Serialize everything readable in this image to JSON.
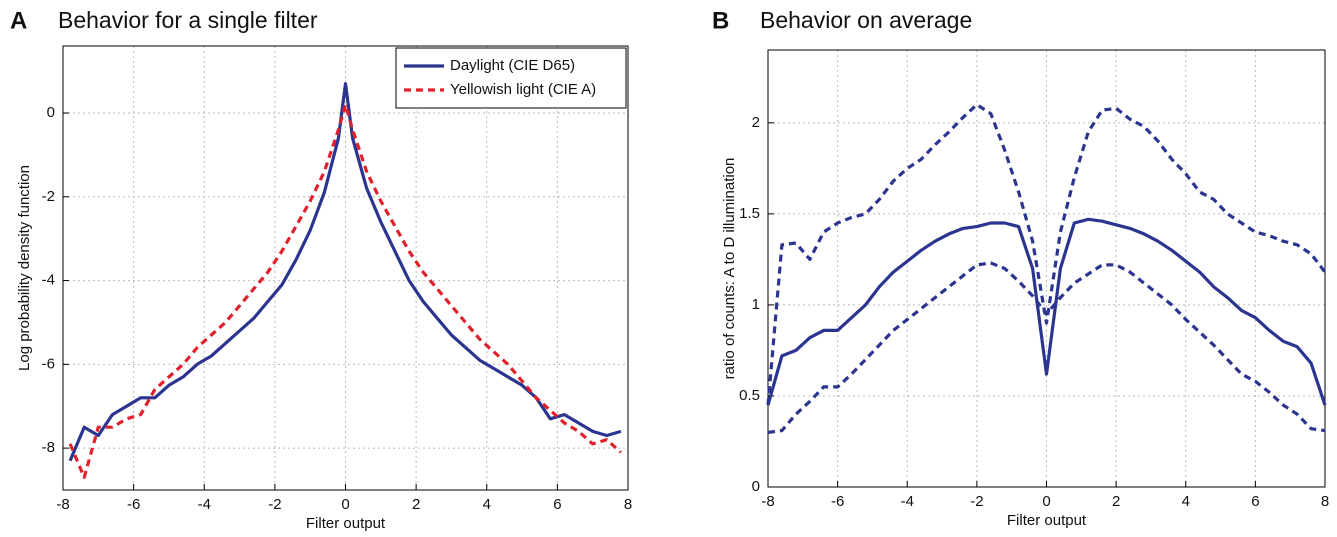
{
  "chart_data": [
    {
      "type": "line",
      "panel_label": "A",
      "title": "Behavior for a single filter",
      "x_label": "Filter output",
      "y_label": "Log probability density function",
      "xlim": [
        -8,
        8
      ],
      "ylim": [
        -9,
        1.6
      ],
      "xticks": [
        -8,
        -6,
        -4,
        -2,
        0,
        2,
        4,
        6,
        8
      ],
      "yticks": [
        -8,
        -6,
        -4,
        -2,
        0
      ],
      "grid": true,
      "legend": "upper right",
      "x": [
        -7.8,
        -7.4,
        -7.0,
        -6.6,
        -6.2,
        -5.8,
        -5.4,
        -5.0,
        -4.6,
        -4.2,
        -3.8,
        -3.4,
        -3.0,
        -2.6,
        -2.2,
        -1.8,
        -1.4,
        -1.0,
        -0.6,
        -0.2,
        0,
        0.2,
        0.6,
        1.0,
        1.4,
        1.8,
        2.2,
        2.6,
        3.0,
        3.4,
        3.8,
        4.2,
        4.6,
        5.0,
        5.4,
        5.8,
        6.2,
        6.6,
        7.0,
        7.4,
        7.8
      ],
      "series": [
        {
          "name": "Daylight (CIE D65)",
          "color": "#2b3590",
          "line_style": "solid",
          "values": [
            -8.3,
            -7.5,
            -7.7,
            -7.2,
            -7.0,
            -6.8,
            -6.8,
            -6.5,
            -6.3,
            -6.0,
            -5.8,
            -5.5,
            -5.2,
            -4.9,
            -4.5,
            -4.1,
            -3.5,
            -2.8,
            -1.9,
            -0.6,
            0.7,
            -0.6,
            -1.8,
            -2.6,
            -3.3,
            -4.0,
            -4.5,
            -4.9,
            -5.3,
            -5.6,
            -5.9,
            -6.1,
            -6.3,
            -6.5,
            -6.8,
            -7.3,
            -7.2,
            -7.4,
            -7.6,
            -7.7,
            -7.6
          ]
        },
        {
          "name": "Yellowish light (CIE A)",
          "color": "#e0202a",
          "line_style": "dashed",
          "values": [
            -7.9,
            -8.7,
            -7.5,
            -7.5,
            -7.3,
            -7.2,
            -6.6,
            -6.3,
            -6.0,
            -5.6,
            -5.3,
            -5.0,
            -4.6,
            -4.2,
            -3.8,
            -3.3,
            -2.7,
            -2.1,
            -1.4,
            -0.4,
            0.2,
            -0.4,
            -1.4,
            -2.1,
            -2.7,
            -3.3,
            -3.8,
            -4.2,
            -4.6,
            -5.0,
            -5.4,
            -5.7,
            -6.0,
            -6.4,
            -6.8,
            -7.1,
            -7.4,
            -7.6,
            -7.9,
            -7.8,
            -8.1
          ]
        }
      ]
    },
    {
      "type": "line",
      "panel_label": "B",
      "title": "Behavior on average",
      "x_label": "Filter output",
      "y_label": "ratio of counts: A to D illumination",
      "xlim": [
        -8,
        8
      ],
      "ylim": [
        0,
        2.4
      ],
      "xticks": [
        -8,
        -6,
        -4,
        -2,
        0,
        2,
        4,
        6,
        8
      ],
      "yticks": [
        0,
        0.5,
        1,
        1.5,
        2
      ],
      "grid": true,
      "x": [
        -8,
        -7.6,
        -7.2,
        -6.8,
        -6.4,
        -6.0,
        -5.6,
        -5.2,
        -4.8,
        -4.4,
        -4.0,
        -3.6,
        -3.2,
        -2.8,
        -2.4,
        -2.0,
        -1.6,
        -1.2,
        -0.8,
        -0.4,
        0,
        0.4,
        0.8,
        1.2,
        1.6,
        2.0,
        2.4,
        2.8,
        3.2,
        3.6,
        4.0,
        4.4,
        4.8,
        5.2,
        5.6,
        6.0,
        6.4,
        6.8,
        7.2,
        7.6,
        8.0
      ],
      "series": [
        {
          "color": "#2b3590",
          "line_style": "solid",
          "values": [
            0.45,
            0.72,
            0.75,
            0.82,
            0.86,
            0.86,
            0.93,
            1.0,
            1.1,
            1.18,
            1.24,
            1.3,
            1.35,
            1.39,
            1.42,
            1.43,
            1.45,
            1.45,
            1.43,
            1.2,
            0.62,
            1.2,
            1.45,
            1.47,
            1.46,
            1.44,
            1.42,
            1.39,
            1.35,
            1.3,
            1.24,
            1.18,
            1.1,
            1.04,
            0.97,
            0.93,
            0.86,
            0.8,
            0.77,
            0.68,
            0.45
          ]
        },
        {
          "color": "#2b3590",
          "line_style": "dashed",
          "values": [
            0.45,
            1.33,
            1.34,
            1.25,
            1.4,
            1.45,
            1.48,
            1.5,
            1.58,
            1.68,
            1.75,
            1.8,
            1.88,
            1.95,
            2.03,
            2.1,
            2.05,
            1.85,
            1.62,
            1.35,
            0.9,
            1.4,
            1.7,
            1.95,
            2.07,
            2.08,
            2.02,
            1.98,
            1.9,
            1.8,
            1.72,
            1.62,
            1.58,
            1.5,
            1.45,
            1.4,
            1.38,
            1.35,
            1.33,
            1.28,
            1.18
          ]
        },
        {
          "color": "#2b3590",
          "line_style": "dashed",
          "values": [
            0.3,
            0.31,
            0.4,
            0.47,
            0.55,
            0.55,
            0.62,
            0.7,
            0.78,
            0.86,
            0.92,
            0.98,
            1.04,
            1.1,
            1.16,
            1.22,
            1.23,
            1.2,
            1.13,
            1.05,
            0.95,
            1.04,
            1.12,
            1.17,
            1.22,
            1.22,
            1.18,
            1.12,
            1.06,
            1.0,
            0.92,
            0.85,
            0.78,
            0.7,
            0.62,
            0.58,
            0.52,
            0.45,
            0.4,
            0.32,
            0.31
          ]
        }
      ]
    }
  ]
}
